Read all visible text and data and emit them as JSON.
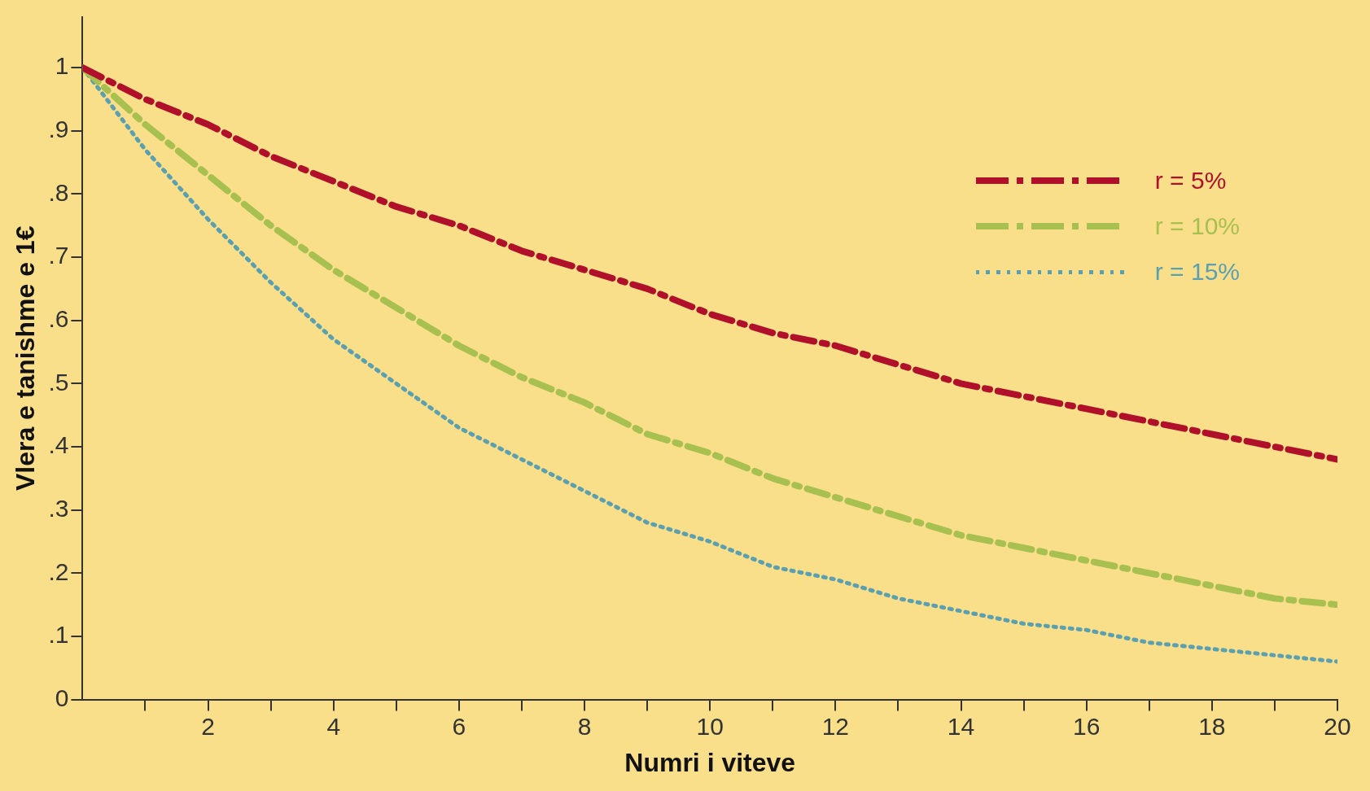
{
  "chart_data": {
    "type": "line",
    "xlabel": "Numri i viteve",
    "ylabel": "Vlera e tanishme e 1€",
    "x": [
      0,
      1,
      2,
      3,
      4,
      5,
      6,
      7,
      8,
      9,
      10,
      11,
      12,
      13,
      14,
      15,
      16,
      17,
      18,
      19,
      20
    ],
    "xlim": [
      0,
      20
    ],
    "xticks": [
      {
        "value": 1,
        "label": null
      },
      2,
      {
        "value": 3,
        "label": null
      },
      4,
      {
        "value": 5,
        "label": null
      },
      6,
      {
        "value": 7,
        "label": null
      },
      8,
      {
        "value": 9,
        "label": null
      },
      10,
      {
        "value": 11,
        "label": null
      },
      12,
      {
        "value": 13,
        "label": null
      },
      14,
      {
        "value": 15,
        "label": null
      },
      16,
      {
        "value": 17,
        "label": null
      },
      18,
      {
        "value": 19,
        "label": null
      },
      20
    ],
    "ylim": [
      0,
      1.08
    ],
    "yticks": [
      0,
      {
        "value": 0.1,
        "label": ".1"
      },
      {
        "value": 0.2,
        "label": ".2"
      },
      {
        "value": 0.3,
        "label": ".3"
      },
      {
        "value": 0.4,
        "label": ".4"
      },
      {
        "value": 0.5,
        "label": ".5"
      },
      {
        "value": 0.6,
        "label": ".6"
      },
      {
        "value": 0.7,
        "label": ".7"
      },
      {
        "value": 0.8,
        "label": ".8"
      },
      {
        "value": 0.9,
        "label": ".9"
      },
      1
    ],
    "grid": false,
    "legend": "top right",
    "marker": "none",
    "series": [
      {
        "name": "r = 5%",
        "color": "#b0102a",
        "line_style": "dashed",
        "values": [
          1,
          0.95,
          0.91,
          0.86,
          0.82,
          0.78,
          0.75,
          0.71,
          0.68,
          0.65,
          0.61,
          0.58,
          0.56,
          0.53,
          0.5,
          0.48,
          0.46,
          0.44,
          0.42,
          0.4,
          0.38
        ]
      },
      {
        "name": "r = 10%",
        "color": "#a8c050",
        "line_style": "dashed",
        "values": [
          1,
          0.91,
          0.83,
          0.75,
          0.68,
          0.62,
          0.56,
          0.51,
          0.47,
          0.42,
          0.39,
          0.35,
          0.32,
          0.29,
          0.26,
          0.24,
          0.22,
          0.2,
          0.18,
          0.16,
          0.15
        ]
      },
      {
        "name": "r = 15%",
        "color": "#5aa0b0",
        "line_style": "dotted",
        "values": [
          1,
          0.87,
          0.76,
          0.66,
          0.57,
          0.5,
          0.43,
          0.38,
          0.33,
          0.28,
          0.25,
          0.21,
          0.19,
          0.16,
          0.14,
          0.12,
          0.11,
          0.09,
          0.08,
          0.07,
          0.06
        ]
      }
    ]
  }
}
